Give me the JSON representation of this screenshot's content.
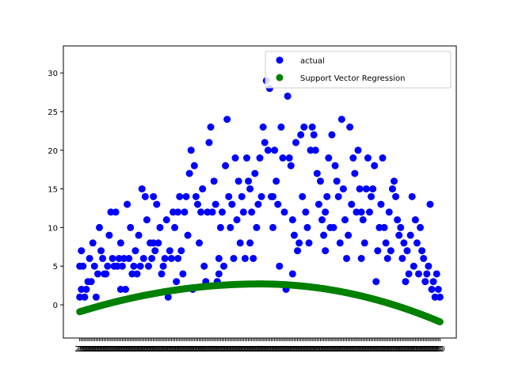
{
  "chart_data": {
    "type": "scatter",
    "ylim": [
      -4.3,
      33.5
    ],
    "yticks": [
      0,
      5,
      10,
      15,
      20,
      25,
      30
    ],
    "x_tick_count": 221,
    "x_tick_label": "20",
    "legend": {
      "placement": "top-right"
    },
    "series": [
      {
        "name": "actual",
        "color": "#0000ff",
        "points": [
          [
            0,
            1
          ],
          [
            0,
            5
          ],
          [
            1,
            7
          ],
          [
            1,
            2
          ],
          [
            2,
            5
          ],
          [
            3,
            1
          ],
          [
            4,
            2
          ],
          [
            5,
            3
          ],
          [
            6,
            6
          ],
          [
            7,
            3
          ],
          [
            8,
            8
          ],
          [
            9,
            5
          ],
          [
            10,
            1
          ],
          [
            11,
            4
          ],
          [
            12,
            10
          ],
          [
            13,
            7
          ],
          [
            14,
            6
          ],
          [
            15,
            4
          ],
          [
            16,
            4
          ],
          [
            17,
            5
          ],
          [
            18,
            9
          ],
          [
            19,
            12
          ],
          [
            20,
            6
          ],
          [
            21,
            5
          ],
          [
            22,
            12
          ],
          [
            23,
            5
          ],
          [
            24,
            6
          ],
          [
            25,
            8
          ],
          [
            26,
            5
          ],
          [
            27,
            6
          ],
          [
            28,
            2
          ],
          [
            29,
            13
          ],
          [
            30,
            6
          ],
          [
            31,
            10
          ],
          [
            32,
            4
          ],
          [
            33,
            5
          ],
          [
            34,
            7
          ],
          [
            35,
            4
          ],
          [
            36,
            9
          ],
          [
            37,
            5
          ],
          [
            38,
            15
          ],
          [
            39,
            6
          ],
          [
            40,
            14
          ],
          [
            41,
            11
          ],
          [
            42,
            5
          ],
          [
            43,
            8
          ],
          [
            44,
            6
          ],
          [
            45,
            14
          ],
          [
            46,
            7
          ],
          [
            47,
            13
          ],
          [
            48,
            8
          ],
          [
            49,
            10
          ],
          [
            50,
            4
          ],
          [
            51,
            5
          ],
          [
            52,
            6
          ],
          [
            53,
            11
          ],
          [
            54,
            1
          ],
          [
            55,
            7
          ],
          [
            56,
            6
          ],
          [
            57,
            12
          ],
          [
            58,
            10
          ],
          [
            59,
            3
          ],
          [
            60,
            12
          ],
          [
            61,
            14
          ],
          [
            62,
            7
          ],
          [
            63,
            4
          ],
          [
            64,
            12
          ],
          [
            65,
            14
          ],
          [
            66,
            9
          ],
          [
            67,
            17
          ],
          [
            68,
            20
          ],
          [
            69,
            2
          ],
          [
            70,
            18
          ],
          [
            71,
            14
          ],
          [
            72,
            13
          ],
          [
            73,
            8
          ],
          [
            74,
            12
          ],
          [
            75,
            15
          ],
          [
            76,
            5
          ],
          [
            77,
            3
          ],
          [
            78,
            12
          ],
          [
            79,
            21
          ],
          [
            80,
            23
          ],
          [
            81,
            12
          ],
          [
            82,
            16
          ],
          [
            83,
            13
          ],
          [
            84,
            3
          ],
          [
            85,
            4
          ],
          [
            86,
            10
          ],
          [
            87,
            12
          ],
          [
            88,
            5
          ],
          [
            89,
            18
          ],
          [
            90,
            24
          ],
          [
            91,
            14
          ],
          [
            92,
            10
          ],
          [
            93,
            13
          ],
          [
            94,
            6
          ],
          [
            95,
            19
          ],
          [
            96,
            11
          ],
          [
            97,
            16
          ],
          [
            98,
            8
          ],
          [
            99,
            14
          ],
          [
            100,
            12
          ],
          [
            101,
            6
          ],
          [
            102,
            19
          ],
          [
            103,
            16
          ],
          [
            104,
            15
          ],
          [
            105,
            12
          ],
          [
            106,
            6
          ],
          [
            107,
            17
          ],
          [
            108,
            10
          ],
          [
            109,
            13
          ],
          [
            110,
            19
          ],
          [
            111,
            14
          ],
          [
            112,
            23
          ],
          [
            113,
            21
          ],
          [
            114,
            29
          ],
          [
            115,
            20
          ],
          [
            116,
            28
          ],
          [
            117,
            14
          ],
          [
            118,
            10
          ],
          [
            119,
            20
          ],
          [
            120,
            16
          ],
          [
            121,
            13
          ],
          [
            122,
            5
          ],
          [
            123,
            23
          ],
          [
            124,
            19
          ],
          [
            125,
            12
          ],
          [
            126,
            2
          ],
          [
            127,
            27
          ],
          [
            128,
            19
          ],
          [
            129,
            18
          ],
          [
            130,
            11
          ],
          [
            131,
            9
          ],
          [
            132,
            21
          ],
          [
            133,
            7
          ],
          [
            134,
            8
          ],
          [
            135,
            22
          ],
          [
            136,
            14
          ],
          [
            137,
            23
          ],
          [
            138,
            12
          ],
          [
            139,
            10
          ],
          [
            140,
            8
          ],
          [
            141,
            20
          ],
          [
            142,
            23
          ],
          [
            143,
            22
          ],
          [
            144,
            20
          ],
          [
            145,
            17
          ],
          [
            146,
            13
          ],
          [
            147,
            16
          ],
          [
            148,
            11
          ],
          [
            149,
            9
          ],
          [
            150,
            12
          ],
          [
            151,
            14
          ],
          [
            152,
            19
          ],
          [
            153,
            10
          ],
          [
            154,
            22
          ],
          [
            155,
            10
          ],
          [
            156,
            18
          ],
          [
            157,
            16
          ],
          [
            158,
            14
          ],
          [
            159,
            8
          ],
          [
            160,
            24
          ],
          [
            161,
            15
          ],
          [
            162,
            11
          ],
          [
            163,
            6
          ],
          [
            164,
            9
          ],
          [
            165,
            23
          ],
          [
            166,
            13
          ],
          [
            167,
            19
          ],
          [
            168,
            17
          ],
          [
            169,
            12
          ],
          [
            170,
            20
          ],
          [
            171,
            15
          ],
          [
            172,
            12
          ],
          [
            173,
            11
          ],
          [
            174,
            8
          ],
          [
            175,
            15
          ],
          [
            176,
            19
          ],
          [
            177,
            12
          ],
          [
            178,
            14
          ],
          [
            179,
            15
          ],
          [
            180,
            18
          ],
          [
            181,
            3
          ],
          [
            182,
            7
          ],
          [
            183,
            10
          ],
          [
            184,
            13
          ],
          [
            185,
            19
          ],
          [
            186,
            10
          ],
          [
            187,
            8
          ],
          [
            188,
            6
          ],
          [
            189,
            12
          ],
          [
            190,
            7
          ],
          [
            191,
            15
          ],
          [
            192,
            16
          ],
          [
            193,
            14
          ],
          [
            194,
            11
          ],
          [
            195,
            9
          ],
          [
            196,
            10
          ],
          [
            197,
            6
          ],
          [
            198,
            8
          ],
          [
            199,
            3
          ],
          [
            200,
            7
          ],
          [
            201,
            4
          ],
          [
            202,
            9
          ],
          [
            203,
            14
          ],
          [
            204,
            5
          ],
          [
            205,
            11
          ],
          [
            206,
            8
          ],
          [
            207,
            4
          ],
          [
            208,
            10
          ],
          [
            209,
            7
          ],
          [
            210,
            6
          ],
          [
            211,
            3
          ],
          [
            212,
            4
          ],
          [
            213,
            5
          ],
          [
            214,
            13
          ],
          [
            215,
            2
          ],
          [
            216,
            3
          ],
          [
            217,
            1
          ],
          [
            218,
            4
          ],
          [
            219,
            2
          ],
          [
            220,
            1
          ],
          [
            25,
            2
          ],
          [
            45,
            8
          ],
          [
            60,
            6
          ],
          [
            85,
            6
          ],
          [
            104,
            8
          ],
          [
            118,
            14
          ],
          [
            130,
            4
          ],
          [
            150,
            7
          ],
          [
            172,
            6
          ]
        ]
      },
      {
        "name": "Support Vector Regression",
        "color": "#008000",
        "curve": {
          "x_start": 0,
          "x_end": 220,
          "x_peak": 110,
          "y_start": -0.9,
          "y_peak": 2.7,
          "y_end": -2.2
        }
      }
    ]
  }
}
